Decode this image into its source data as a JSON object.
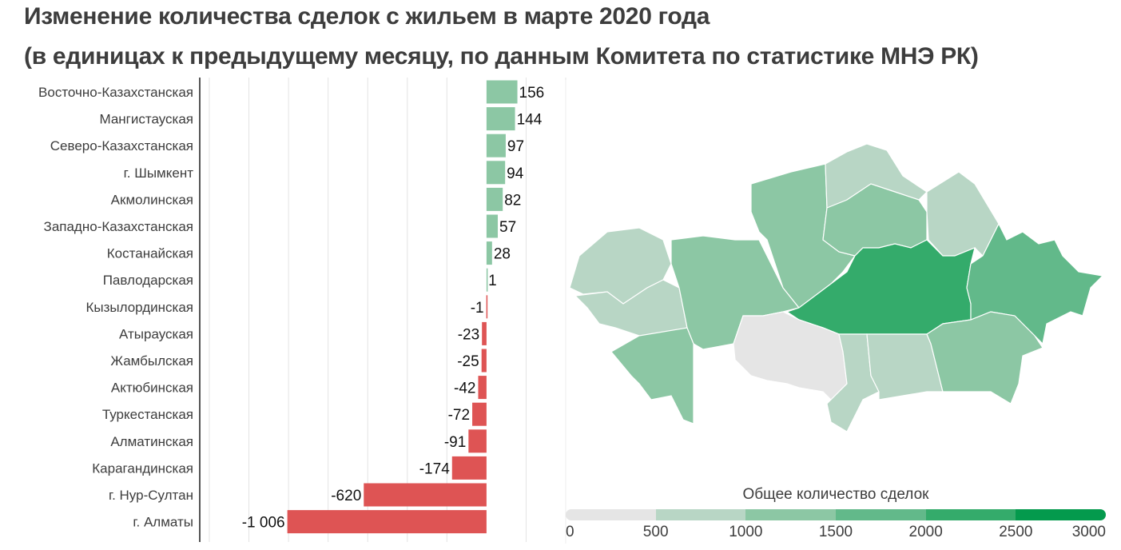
{
  "title_line1": "Изменение количества сделок с жильем в марте 2020 года",
  "title_line2": "(в единицах к предыдущему месяцу, по данным Комитета по статистике МНЭ РК)",
  "chart_data": [
    {
      "type": "bar",
      "orientation": "horizontal",
      "categories": [
        "Восточно-Казахстанская",
        "Мангистауская",
        "Северо-Казахстанская",
        "г. Шымкент",
        "Акмолинская",
        "Западно-Казахстанская",
        "Костанайская",
        "Павлодарская",
        "Кызылординская",
        "Атырауская",
        "Жамбылская",
        "Актюбинская",
        "Туркестанская",
        "Алматинская",
        "Карагандинская",
        "г. Нур-Султан",
        "г. Алматы"
      ],
      "values": [
        156,
        144,
        97,
        94,
        82,
        57,
        28,
        1,
        -1,
        -23,
        -25,
        -42,
        -72,
        -91,
        -174,
        -620,
        -1006
      ],
      "value_labels": [
        "156",
        "144",
        "97",
        "94",
        "82",
        "57",
        "28",
        "1",
        "-1",
        "-23",
        "-25",
        "-42",
        "-72",
        "-91",
        "-174",
        "-620",
        "-1 006"
      ],
      "xlim": [
        -1400,
        400
      ],
      "grid_step": 200,
      "grid": true,
      "colors": {
        "positive": "#8cc7a4",
        "negative": "#de5454"
      }
    },
    {
      "type": "choropleth",
      "legend_title": "Общее количество сделок",
      "legend_ticks": [
        "0",
        "500",
        "1000",
        "1500",
        "2000",
        "2500",
        "3000"
      ],
      "legend_colors": [
        "#e5e5e5",
        "#b8d6c5",
        "#8cc7a4",
        "#62b98a",
        "#34ab6b",
        "#049a4d"
      ],
      "regions": [
        {
          "name": "Западно-Казахстанская",
          "bin": 1
        },
        {
          "name": "Атырауская",
          "bin": 1
        },
        {
          "name": "Мангистауская",
          "bin": 2
        },
        {
          "name": "Актюбинская",
          "bin": 2
        },
        {
          "name": "Костанайская",
          "bin": 2
        },
        {
          "name": "Северо-Казахстанская",
          "bin": 1
        },
        {
          "name": "Акмолинская",
          "bin": 2
        },
        {
          "name": "Павлодарская",
          "bin": 1
        },
        {
          "name": "Карагандинская",
          "bin": 4
        },
        {
          "name": "Восточно-Казахстанская",
          "bin": 3
        },
        {
          "name": "Кызылординская",
          "bin": 0
        },
        {
          "name": "Туркестанская",
          "bin": 1
        },
        {
          "name": "Жамбылская",
          "bin": 1
        },
        {
          "name": "Алматинская",
          "bin": 2
        }
      ]
    }
  ]
}
